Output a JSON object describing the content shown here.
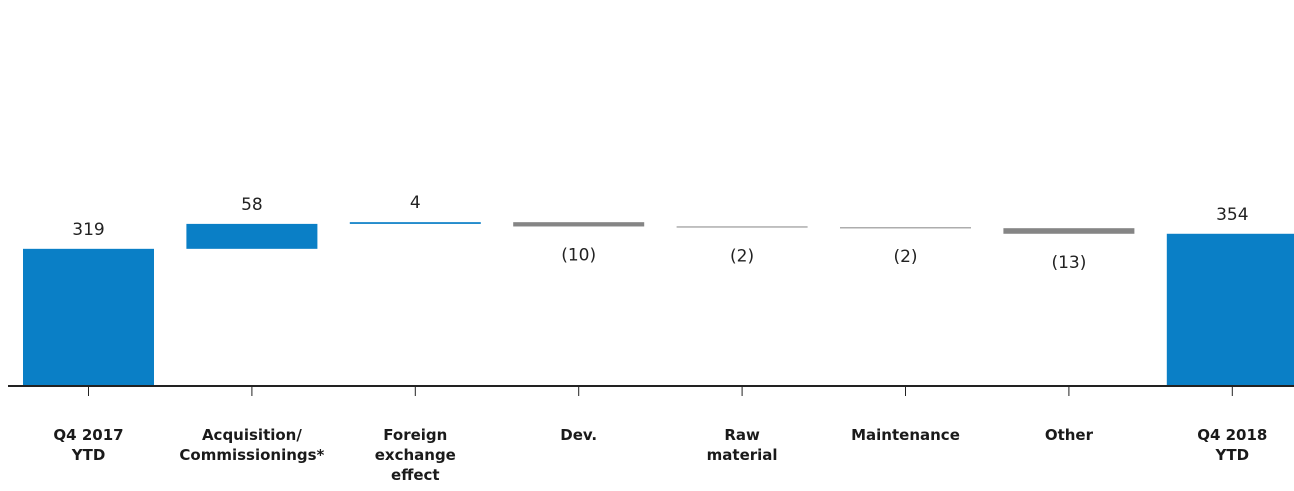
{
  "chart_data": {
    "type": "waterfall",
    "title": "",
    "xlabel": "",
    "ylabel": "",
    "categories": [
      [
        "Q4 2017",
        "YTD"
      ],
      [
        "Acquisition/",
        "Commissionings*"
      ],
      [
        "Foreign",
        "exchange",
        "effect"
      ],
      [
        "Dev."
      ],
      [
        "Raw",
        "material"
      ],
      [
        "Maintenance"
      ],
      [
        "Other"
      ],
      [
        "Q4 2018",
        "YTD"
      ]
    ],
    "values": [
      319,
      58,
      4,
      -10,
      -2,
      -2,
      -13,
      354
    ],
    "kinds": [
      "total",
      "delta",
      "delta",
      "delta",
      "delta",
      "delta",
      "delta",
      "total"
    ],
    "labels": [
      "319",
      "58",
      "4",
      "(10)",
      "(2)",
      "(2)",
      "(13)",
      "354"
    ],
    "colors": {
      "total": "#0a7fc6",
      "increase": "#0a7fc6",
      "decrease": "#858585",
      "axis": "#222222"
    },
    "legend": "none",
    "grid": false
  }
}
